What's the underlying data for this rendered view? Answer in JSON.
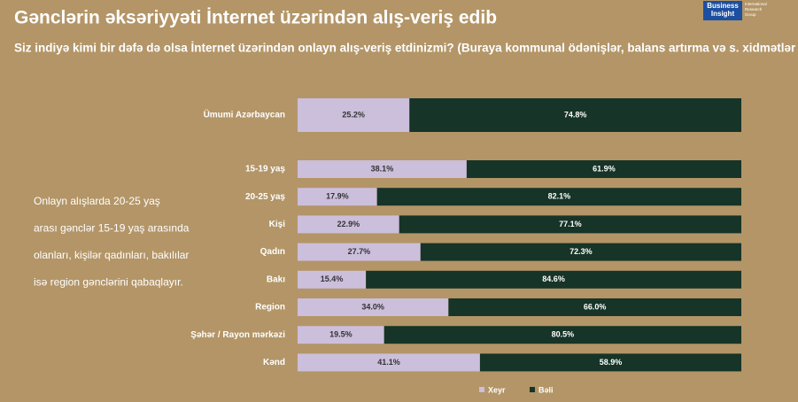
{
  "chart_data": {
    "type": "stacked-bar-horizontal",
    "title": "Gənclərin əksəriyyəti İnternet üzərindən alış-veriş edib",
    "subtitle": "Siz indiyə kimi bir dəfə də olsa İnternet üzərindən onlayn alış-veriş etdinizmi? (Buraya kommunal ödənişlər,  balans artırma  və s. xidmətlər də daxildir)",
    "annotation": [
      "Onlayn alışlarda 20-25 yaş",
      "arası gənclər 15-19 yaş arasında",
      "olanları, kişilər qadınları, bakılılar",
      "isə region gənclərini qabaqlayır."
    ],
    "categories": [
      "Ümumi Azərbaycan",
      "15-19 yaş",
      "20-25 yaş",
      "Kişi",
      "Qadın",
      "Bakı",
      "Region",
      "Şəhər / Rayon mərkəzi",
      "Kənd"
    ],
    "xlim": [
      0,
      100
    ],
    "legend": "bottom",
    "series": [
      {
        "name": "Xeyr",
        "color": "#cbbfdc",
        "values": [
          25.2,
          38.1,
          17.9,
          22.9,
          27.7,
          15.4,
          34.0,
          19.5,
          41.1
        ],
        "value_labels": [
          "25.2%",
          "38.1%",
          "17.9%",
          "22.9%",
          "27.7%",
          "15.4%",
          "34.0%",
          "19.5%",
          "41.1%"
        ]
      },
      {
        "name": "Bəli",
        "color": "#163427",
        "values": [
          74.8,
          61.9,
          82.1,
          77.1,
          72.3,
          84.6,
          66.0,
          80.5,
          58.9
        ],
        "value_labels": [
          "74.8%",
          "61.9%",
          "82.1%",
          "77.1%",
          "72.3%",
          "84.6%",
          "66.0%",
          "80.5%",
          "58.9%"
        ]
      }
    ]
  },
  "logo": {
    "lines": [
      "Business",
      "Insight"
    ],
    "small": [
      "International",
      "Research",
      "Group"
    ]
  }
}
